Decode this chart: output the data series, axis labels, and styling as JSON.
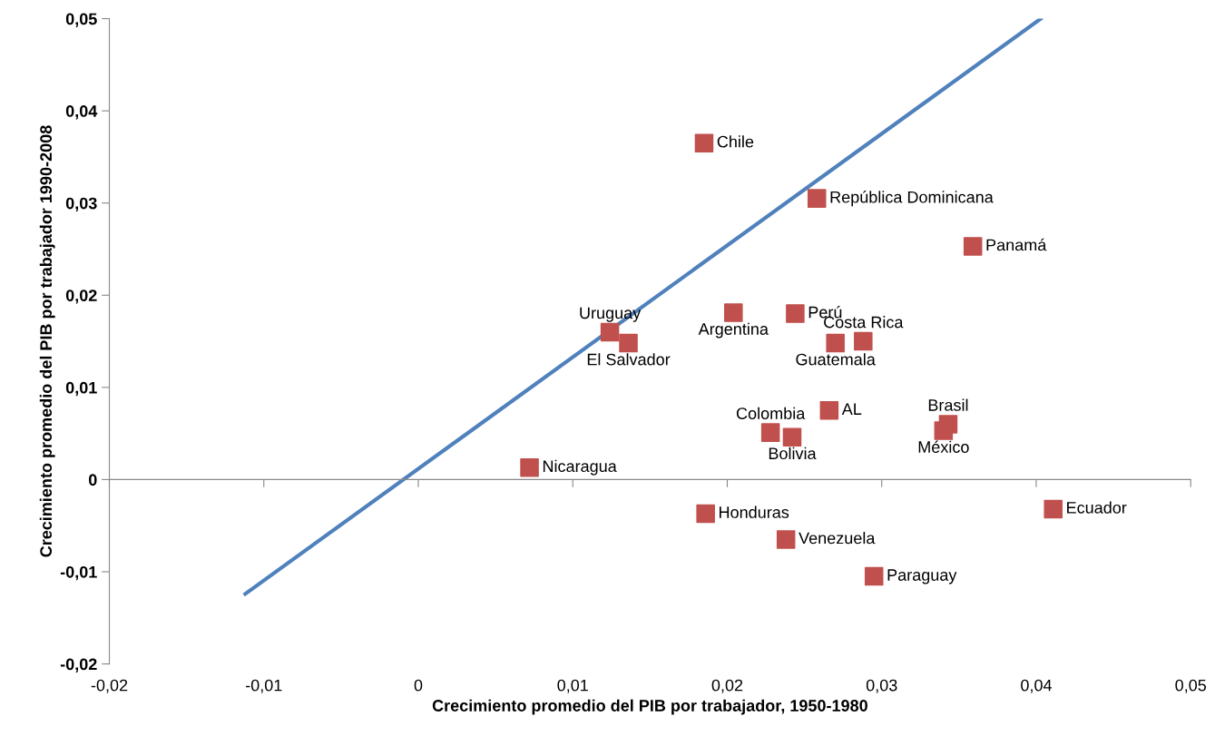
{
  "chart_data": {
    "type": "scatter",
    "xlabel": "Crecimiento promedio del PIB por trabajador, 1950-1980",
    "ylabel": "Crecimiento promedio del PIB por trabajador 1990-2008",
    "xlim": [
      -0.02,
      0.05
    ],
    "ylim": [
      -0.02,
      0.05
    ],
    "xticks": [
      {
        "value": -0.02,
        "label": "-0,02"
      },
      {
        "value": -0.01,
        "label": "-0,01"
      },
      0,
      {
        "value": 0.01,
        "label": "0,01"
      },
      {
        "value": 0.02,
        "label": "0,02"
      },
      {
        "value": 0.03,
        "label": "0,03"
      },
      {
        "value": 0.04,
        "label": "0,04"
      },
      {
        "value": 0.05,
        "label": "0,05"
      }
    ],
    "yticks": [
      {
        "value": -0.02,
        "label": "-0,02"
      },
      {
        "value": -0.01,
        "label": "-0,01"
      },
      0,
      {
        "value": 0.01,
        "label": "0,01"
      },
      {
        "value": 0.02,
        "label": "0,02"
      },
      {
        "value": 0.03,
        "label": "0,03"
      },
      {
        "value": 0.04,
        "label": "0,04"
      },
      {
        "value": 0.05,
        "label": "0,05"
      }
    ],
    "legend": false,
    "series": [
      {
        "marker": "square",
        "color": "#c0504d",
        "x": [
          0.0185,
          0.0258,
          0.0359,
          0.0124,
          0.0136,
          0.0204,
          0.0244,
          0.027,
          0.0288,
          0.0266,
          0.0343,
          0.034,
          0.0228,
          0.0242,
          0.0072,
          0.0186,
          0.0238,
          0.0295,
          0.0411
        ],
        "values": [
          0.0365,
          0.0305,
          0.0253,
          0.016,
          0.0148,
          0.0181,
          0.018,
          0.0148,
          0.015,
          0.0075,
          0.006,
          0.0053,
          0.0051,
          0.0046,
          0.0013,
          -0.0037,
          -0.0065,
          -0.0105,
          -0.0032
        ],
        "value_labels": [
          "Chile",
          "República Dominicana",
          "Panamá",
          "Uruguay",
          "El Salvador",
          "Argentina",
          "Perú",
          "Guatemala",
          "Costa Rica",
          "AL",
          "Brasil",
          "México",
          "Colombia",
          "Bolivia",
          "Nicaragua",
          "Honduras",
          "Venezuela",
          "Paraguay",
          "Ecuador"
        ]
      },
      {
        "type": "line",
        "color": "#4f81bd",
        "marker": "none",
        "x": [
          -0.0112,
          0.0403
        ],
        "values": [
          -0.0124,
          0.05
        ]
      }
    ]
  }
}
